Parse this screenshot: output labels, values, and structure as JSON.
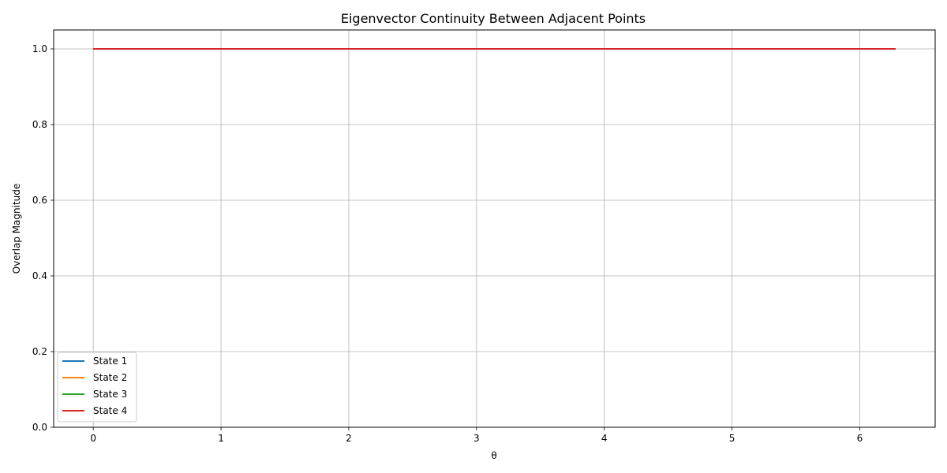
{
  "chart_data": {
    "type": "line",
    "title": "Eigenvector Continuity Between Adjacent Points",
    "xlabel": "θ",
    "ylabel": "Overlap Magnitude",
    "xlim": [
      -0.31,
      6.59
    ],
    "ylim": [
      0.0,
      1.05
    ],
    "xticks": [
      0,
      1,
      2,
      3,
      4,
      5,
      6
    ],
    "xtick_labels": [
      "0",
      "1",
      "2",
      "3",
      "4",
      "5",
      "6"
    ],
    "yticks": [
      0.0,
      0.2,
      0.4,
      0.6,
      0.8,
      1.0
    ],
    "ytick_labels": [
      "0.0",
      "0.2",
      "0.4",
      "0.6",
      "0.8",
      "1.0"
    ],
    "grid": true,
    "legend_position": "lower-left",
    "series": [
      {
        "name": "State 1",
        "color": "#1f77b4",
        "x": [
          0,
          6.28
        ],
        "values": [
          1.0,
          1.0
        ]
      },
      {
        "name": "State 2",
        "color": "#ff7f0e",
        "x": [
          0,
          6.28
        ],
        "values": [
          1.0,
          1.0
        ]
      },
      {
        "name": "State 3",
        "color": "#2ca02c",
        "x": [
          0,
          6.28
        ],
        "values": [
          1.0,
          1.0
        ]
      },
      {
        "name": "State 4",
        "color": "#d62728",
        "x": [
          0,
          6.28
        ],
        "values": [
          1.0,
          1.0
        ]
      }
    ]
  }
}
